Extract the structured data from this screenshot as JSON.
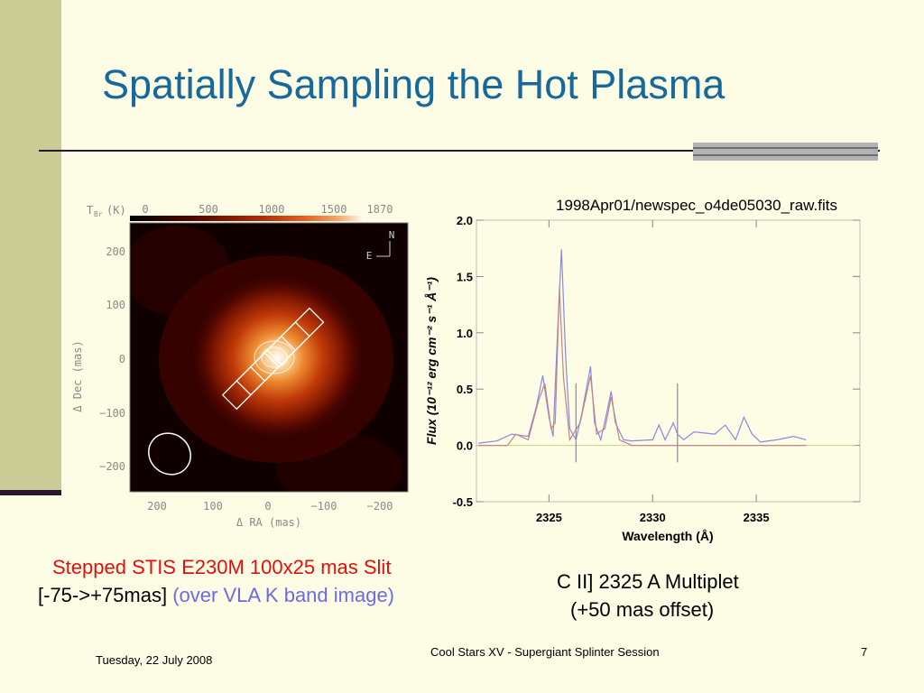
{
  "slide": {
    "title": "Spatially Sampling the Hot Plasma",
    "caption_line1": "Stepped STIS E230M 100x25 mas Slit",
    "caption_line2_main": "[-75->+75mas]",
    "caption_line2_blue": "(over VLA K band image)",
    "caption_right_line1": "C II] 2325 A Multiplet",
    "caption_right_line2": "(+50 mas offset)",
    "footer_date": "Tuesday, 22 July 2008",
    "footer_center": "Cool Stars XV - Supergiant Splinter Session",
    "page_number": "7"
  },
  "colors": {
    "title": "#16699a",
    "sidebar": "#cbcb96",
    "background": "#fdfce4",
    "caption_red": "#e01010",
    "caption_blue": "#6b6be8",
    "spectrum_data": "#8888e8",
    "spectrum_model": "#c48484"
  },
  "chart_data": [
    {
      "type": "heatmap",
      "colorbar_label": "T",
      "colorbar_sub": "Br",
      "colorbar_unit": "(K)",
      "colorbar_ticks": [
        "0",
        "500",
        "1000",
        "1500",
        "1870"
      ],
      "xlabel": "Δ RA (mas)",
      "ylabel": "Δ Dec (mas)",
      "xticks": [
        "200",
        "100",
        "0",
        "−100",
        "−200"
      ],
      "yticks": [
        "200",
        "100",
        "0",
        "−100",
        "−200"
      ],
      "compass_north": "N",
      "compass_east": "E",
      "peak_value": 1870,
      "peak_position_mas": [
        0,
        0
      ]
    },
    {
      "type": "line",
      "title": "1998Apr01/newspec_o4de05030_raw.fits",
      "xlabel": "Wavelength (Å)",
      "ylabel": "Flux (10⁻¹² erg cm⁻² s⁻¹ Å⁻¹)",
      "xlim": [
        2321.5,
        2340
      ],
      "ylim": [
        -0.5,
        2.0
      ],
      "xticks": [
        "2325",
        "2330",
        "2335"
      ],
      "yticks": [
        "2.0",
        "1.5",
        "1.0",
        "0.5",
        "0.0",
        "-0.5"
      ],
      "series": [
        {
          "x": [
            2321.6,
            2322.5,
            2323.2,
            2324.0,
            2324.4,
            2324.7,
            2325.0,
            2325.2,
            2325.4,
            2325.6,
            2325.8,
            2326.0,
            2326.3,
            2326.6,
            2327.0,
            2327.2,
            2327.5,
            2327.8,
            2328.0,
            2328.2,
            2328.6,
            2329.0,
            2330.0,
            2330.3,
            2330.6,
            2331.0,
            2331.2,
            2331.5,
            2332.0,
            2333.0,
            2333.5,
            2334.0,
            2334.4,
            2334.8,
            2335.2,
            2336.0,
            2336.8,
            2337.4
          ],
          "y": [
            0.02,
            0.04,
            0.1,
            0.08,
            0.35,
            0.62,
            0.25,
            0.08,
            0.95,
            1.74,
            0.8,
            0.15,
            0.05,
            0.3,
            0.7,
            0.2,
            0.05,
            0.3,
            0.48,
            0.2,
            0.05,
            0.04,
            0.05,
            0.18,
            0.05,
            0.2,
            0.1,
            0.05,
            0.12,
            0.1,
            0.18,
            0.05,
            0.25,
            0.1,
            0.03,
            0.05,
            0.08,
            0.05
          ]
        },
        {
          "x": [
            2321.6,
            2323.0,
            2323.4,
            2324.0,
            2324.5,
            2324.8,
            2325.1,
            2325.3,
            2325.5,
            2325.7,
            2326.0,
            2326.5,
            2327.0,
            2327.3,
            2327.7,
            2328.0,
            2328.4,
            2329.0,
            2337.4
          ],
          "y": [
            0.0,
            0.0,
            0.1,
            0.05,
            0.4,
            0.55,
            0.15,
            0.2,
            1.4,
            0.6,
            0.05,
            0.2,
            0.62,
            0.1,
            0.15,
            0.43,
            0.05,
            0.0,
            0.0
          ]
        }
      ],
      "absorption_lines_x": [
        2326.3,
        2331.2
      ],
      "zero_line": 0.0
    }
  ]
}
